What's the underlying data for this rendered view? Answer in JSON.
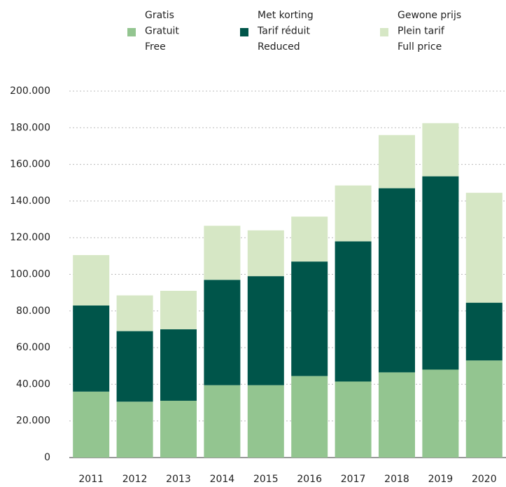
{
  "chart_data": {
    "type": "stacked_bar",
    "categories": [
      "2011",
      "2012",
      "2013",
      "2014",
      "2015",
      "2016",
      "2017",
      "2018",
      "2019",
      "2020"
    ],
    "series": [
      {
        "name": [
          "Gratis",
          "Gratuit",
          "Free"
        ],
        "color": "#93c590",
        "values": [
          36000,
          30500,
          31000,
          39500,
          39500,
          44500,
          41500,
          46500,
          48000,
          53000
        ]
      },
      {
        "name": [
          "Met korting",
          "Tarif réduit",
          "Reduced"
        ],
        "color": "#00554a",
        "values": [
          47000,
          38500,
          39000,
          57500,
          59500,
          62500,
          76500,
          100500,
          105500,
          31500
        ]
      },
      {
        "name": [
          "Gewone prijs",
          "Plein tarif",
          "Full price"
        ],
        "color": "#d6e7c5",
        "values": [
          27500,
          19500,
          21000,
          29500,
          25000,
          24500,
          30500,
          29000,
          29000,
          60000
        ]
      }
    ],
    "ylim": [
      0,
      200000
    ],
    "yticks": [
      0,
      {
        "value": 20000,
        "label": "20.000"
      },
      {
        "value": 40000,
        "label": "40.000"
      },
      {
        "value": 60000,
        "label": "60.000"
      },
      {
        "value": 80000,
        "label": "80.000"
      },
      {
        "value": 100000,
        "label": "100.000"
      },
      {
        "value": 120000,
        "label": "120.000"
      },
      {
        "value": 140000,
        "label": "140.000"
      },
      {
        "value": 160000,
        "label": "160.000"
      },
      {
        "value": 180000,
        "label": "180.000"
      },
      {
        "value": 200000,
        "label": "200.000"
      }
    ],
    "grid": true
  }
}
